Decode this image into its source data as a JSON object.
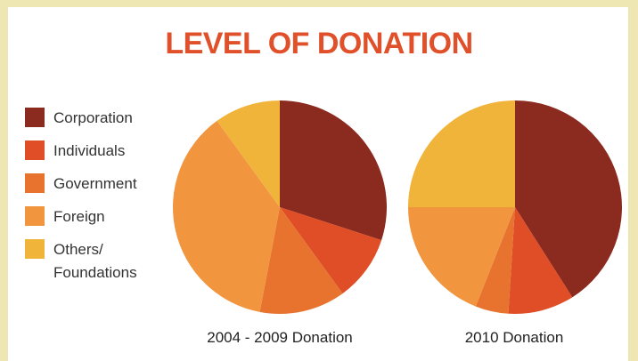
{
  "title": "LEVEL OF DONATION",
  "legend": [
    {
      "label": "Corporation",
      "color": "#8b2a1e"
    },
    {
      "label": "Individuals",
      "color": "#df4e26"
    },
    {
      "label": "Government",
      "color": "#e7732f"
    },
    {
      "label": "Foreign",
      "color": "#f1953f"
    },
    {
      "label": "Others/\nFoundations",
      "color": "#f1b43b"
    }
  ],
  "chart_data": [
    {
      "type": "pie",
      "title": "2004 - 2009 Donation",
      "categories": [
        "Corporation",
        "Individuals",
        "Government",
        "Foreign",
        "Others/ Foundations"
      ],
      "values": [
        30,
        10,
        13,
        37,
        10
      ]
    },
    {
      "type": "pie",
      "title": "2010 Donation",
      "categories": [
        "Corporation",
        "Individuals",
        "Government",
        "Foreign",
        "Others/ Foundations"
      ],
      "values": [
        41,
        10,
        5,
        19,
        25
      ]
    }
  ]
}
